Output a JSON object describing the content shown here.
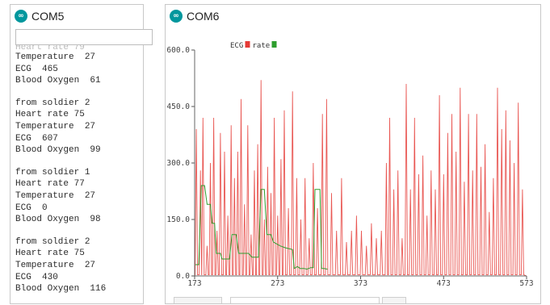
{
  "com5": {
    "title": "COM5",
    "cut_line": "Heart rate 79",
    "lines": [
      "Temperature  27",
      "ECG  465",
      "Blood Oxygen  61",
      "",
      "from soldier 2",
      "Heart rate 75",
      "Temperature  27",
      "ECG  607",
      "Blood Oxygen  99",
      "",
      "from soldier 1",
      "Heart rate 77",
      "Temperature  27",
      "ECG  0",
      "Blood Oxygen  98",
      "",
      "from soldier 2",
      "Heart rate 75",
      "Temperature  27",
      "ECG  430",
      "Blood Oxygen  116"
    ]
  },
  "com6": {
    "title": "COM6",
    "legend": [
      {
        "name": "ECG",
        "color": "#e53935"
      },
      {
        "name": "rate",
        "color": "#2e9e2e"
      }
    ]
  },
  "chart_data": {
    "type": "line",
    "xlim": [
      173,
      573
    ],
    "ylim": [
      0,
      600
    ],
    "x_ticks": [
      173,
      273,
      373,
      473,
      573
    ],
    "y_ticks": [
      "0.0",
      "150.0",
      "300.0",
      "450.0",
      "600.0"
    ],
    "series": [
      {
        "name": "ECG",
        "color": "#e53935",
        "peaks": [
          [
            175,
            390
          ],
          [
            180,
            280
          ],
          [
            183,
            420
          ],
          [
            188,
            80
          ],
          [
            192,
            300
          ],
          [
            196,
            420
          ],
          [
            200,
            120
          ],
          [
            204,
            380
          ],
          [
            209,
            330
          ],
          [
            213,
            160
          ],
          [
            217,
            400
          ],
          [
            221,
            260
          ],
          [
            225,
            330
          ],
          [
            229,
            470
          ],
          [
            233,
            190
          ],
          [
            237,
            400
          ],
          [
            241,
            110
          ],
          [
            245,
            280
          ],
          [
            249,
            350
          ],
          [
            253,
            520
          ],
          [
            257,
            150
          ],
          [
            261,
            290
          ],
          [
            265,
            220
          ],
          [
            269,
            420
          ],
          [
            273,
            160
          ],
          [
            277,
            310
          ],
          [
            281,
            440
          ],
          [
            286,
            180
          ],
          [
            291,
            490
          ],
          [
            296,
            260
          ],
          [
            301,
            150
          ],
          [
            306,
            260
          ],
          [
            311,
            100
          ],
          [
            316,
            300
          ],
          [
            321,
            180
          ],
          [
            327,
            430
          ],
          [
            332,
            470
          ],
          [
            338,
            220
          ],
          [
            344,
            120
          ],
          [
            350,
            260
          ],
          [
            356,
            90
          ],
          [
            362,
            120
          ],
          [
            368,
            160
          ],
          [
            374,
            120
          ],
          [
            380,
            80
          ],
          [
            386,
            140
          ],
          [
            392,
            100
          ],
          [
            398,
            120
          ],
          [
            404,
            300
          ],
          [
            408,
            420
          ],
          [
            413,
            230
          ],
          [
            418,
            280
          ],
          [
            423,
            100
          ],
          [
            428,
            510
          ],
          [
            433,
            230
          ],
          [
            438,
            420
          ],
          [
            443,
            270
          ],
          [
            448,
            320
          ],
          [
            453,
            160
          ],
          [
            458,
            280
          ],
          [
            463,
            230
          ],
          [
            468,
            480
          ],
          [
            473,
            270
          ],
          [
            478,
            380
          ],
          [
            483,
            430
          ],
          [
            488,
            330
          ],
          [
            493,
            500
          ],
          [
            498,
            250
          ],
          [
            503,
            430
          ],
          [
            508,
            280
          ],
          [
            513,
            430
          ],
          [
            518,
            290
          ],
          [
            523,
            350
          ],
          [
            528,
            170
          ],
          [
            533,
            260
          ],
          [
            538,
            500
          ],
          [
            543,
            390
          ],
          [
            548,
            440
          ],
          [
            553,
            360
          ],
          [
            558,
            300
          ],
          [
            563,
            460
          ],
          [
            568,
            230
          ]
        ]
      },
      {
        "name": "rate",
        "color": "#2e9e2e",
        "points": [
          [
            174,
            30
          ],
          [
            178,
            30
          ],
          [
            181,
            240
          ],
          [
            185,
            240
          ],
          [
            188,
            190
          ],
          [
            192,
            190
          ],
          [
            194,
            140
          ],
          [
            197,
            140
          ],
          [
            199,
            60
          ],
          [
            204,
            60
          ],
          [
            206,
            45
          ],
          [
            215,
            45
          ],
          [
            218,
            110
          ],
          [
            223,
            110
          ],
          [
            226,
            60
          ],
          [
            235,
            60
          ],
          [
            238,
            60
          ],
          [
            242,
            50
          ],
          [
            250,
            50
          ],
          [
            253,
            230
          ],
          [
            257,
            230
          ],
          [
            260,
            110
          ],
          [
            265,
            110
          ],
          [
            268,
            90
          ],
          [
            276,
            80
          ],
          [
            282,
            75
          ],
          [
            291,
            70
          ],
          [
            293,
            20
          ],
          [
            297,
            25
          ],
          [
            300,
            20
          ],
          [
            305,
            20
          ],
          [
            308,
            18
          ],
          [
            313,
            22
          ],
          [
            316,
            22
          ],
          [
            318,
            230
          ],
          [
            324,
            230
          ],
          [
            326,
            20
          ],
          [
            329,
            20
          ],
          [
            333,
            18
          ]
        ]
      }
    ]
  }
}
